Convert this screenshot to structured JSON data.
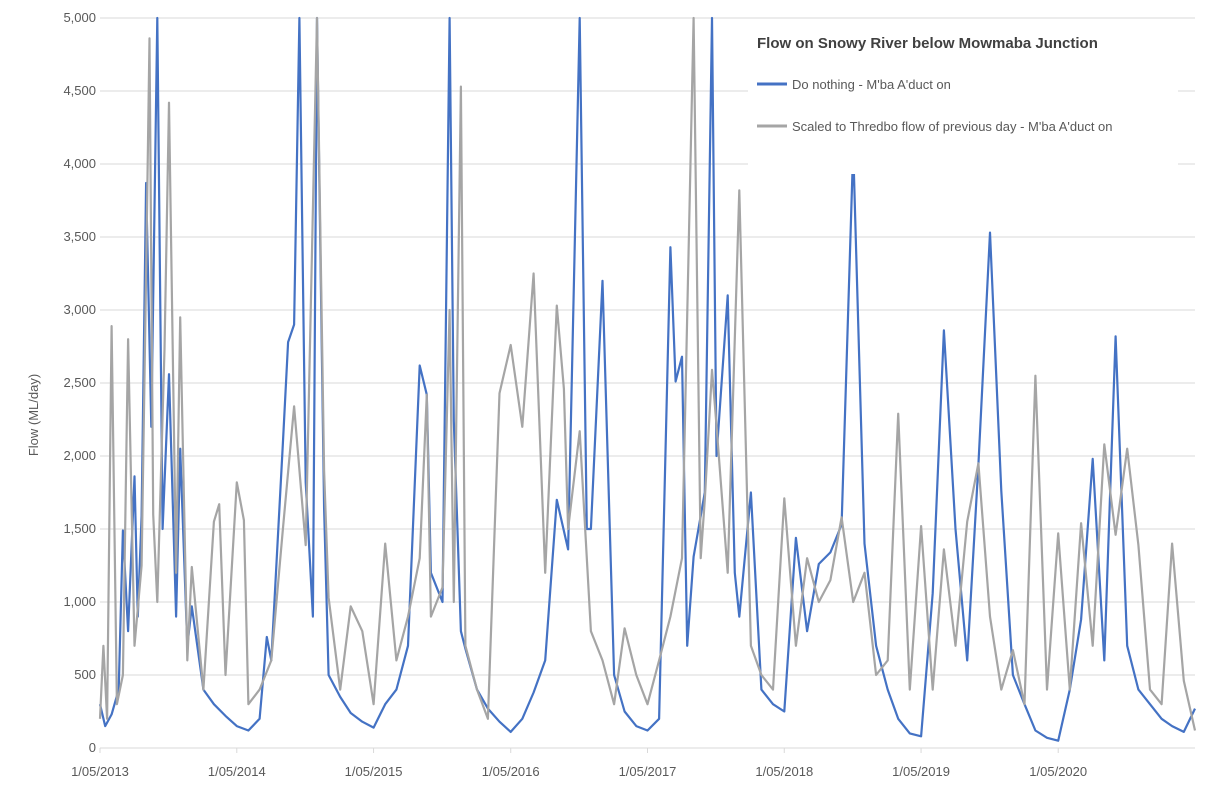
{
  "chart_data": {
    "type": "line",
    "title": "Flow on Snowy River below Mowmaba Junction",
    "ylabel": "Flow (ML/day)",
    "xlabel": "",
    "ylim": [
      0,
      5000
    ],
    "yticks": [
      0,
      500,
      1000,
      1500,
      2000,
      2500,
      3000,
      3500,
      4000,
      4500,
      5000
    ],
    "ytick_labels": [
      "0",
      "500",
      "1,000",
      "1,500",
      "2,000",
      "2,500",
      "3,000",
      "3,500",
      "4,000",
      "4,500",
      "5,000"
    ],
    "xlim": [
      "2013-05-01",
      "2021-05-01"
    ],
    "xticks": [
      "2013-05-01",
      "2014-05-01",
      "2015-05-01",
      "2016-05-01",
      "2017-05-01",
      "2018-05-01",
      "2019-05-01",
      "2020-05-01"
    ],
    "xtick_labels": [
      "1/05/2013",
      "1/05/2014",
      "1/05/2015",
      "1/05/2016",
      "1/05/2017",
      "1/05/2018",
      "1/05/2019",
      "1/05/2020"
    ],
    "grid": "horizontal",
    "legend_position": "top-right",
    "series": [
      {
        "name": "Do nothing - M'ba A'duct on",
        "color": "#4472c4",
        "points": [
          [
            "2013-05-01",
            300
          ],
          [
            "2013-05-15",
            150
          ],
          [
            "2013-06-01",
            230
          ],
          [
            "2013-06-20",
            400
          ],
          [
            "2013-07-01",
            1490
          ],
          [
            "2013-07-15",
            800
          ],
          [
            "2013-08-01",
            1860
          ],
          [
            "2013-08-10",
            900
          ],
          [
            "2013-08-20",
            1590
          ],
          [
            "2013-09-01",
            3870
          ],
          [
            "2013-09-15",
            2200
          ],
          [
            "2013-10-01",
            5000
          ],
          [
            "2013-10-15",
            1500
          ],
          [
            "2013-11-01",
            2560
          ],
          [
            "2013-11-20",
            900
          ],
          [
            "2013-12-01",
            2050
          ],
          [
            "2013-12-20",
            700
          ],
          [
            "2014-01-01",
            970
          ],
          [
            "2014-02-01",
            400
          ],
          [
            "2014-03-01",
            300
          ],
          [
            "2014-04-01",
            220
          ],
          [
            "2014-05-01",
            150
          ],
          [
            "2014-06-01",
            120
          ],
          [
            "2014-07-01",
            200
          ],
          [
            "2014-07-20",
            760
          ],
          [
            "2014-08-01",
            600
          ],
          [
            "2014-09-01",
            2090
          ],
          [
            "2014-09-15",
            2780
          ],
          [
            "2014-10-01",
            2900
          ],
          [
            "2014-10-15",
            5000
          ],
          [
            "2014-11-01",
            1820
          ],
          [
            "2014-11-20",
            900
          ],
          [
            "2014-12-01",
            5000
          ],
          [
            "2014-12-20",
            1640
          ],
          [
            "2015-01-01",
            500
          ],
          [
            "2015-02-01",
            350
          ],
          [
            "2015-03-01",
            240
          ],
          [
            "2015-04-01",
            180
          ],
          [
            "2015-05-01",
            140
          ],
          [
            "2015-06-01",
            300
          ],
          [
            "2015-07-01",
            400
          ],
          [
            "2015-08-01",
            700
          ],
          [
            "2015-09-01",
            2620
          ],
          [
            "2015-09-20",
            2420
          ],
          [
            "2015-10-01",
            1200
          ],
          [
            "2015-11-01",
            1000
          ],
          [
            "2015-11-20",
            5000
          ],
          [
            "2015-12-01",
            2240
          ],
          [
            "2015-12-20",
            800
          ],
          [
            "2016-01-01",
            680
          ],
          [
            "2016-02-01",
            400
          ],
          [
            "2016-03-01",
            270
          ],
          [
            "2016-04-01",
            180
          ],
          [
            "2016-05-01",
            110
          ],
          [
            "2016-06-01",
            200
          ],
          [
            "2016-07-01",
            380
          ],
          [
            "2016-08-01",
            600
          ],
          [
            "2016-09-01",
            1700
          ],
          [
            "2016-10-01",
            1360
          ],
          [
            "2016-11-01",
            5000
          ],
          [
            "2016-11-20",
            1500
          ],
          [
            "2016-12-01",
            1500
          ],
          [
            "2017-01-01",
            3200
          ],
          [
            "2017-02-01",
            500
          ],
          [
            "2017-03-01",
            250
          ],
          [
            "2017-04-01",
            150
          ],
          [
            "2017-05-01",
            120
          ],
          [
            "2017-06-01",
            200
          ],
          [
            "2017-07-01",
            3430
          ],
          [
            "2017-07-15",
            2510
          ],
          [
            "2017-08-01",
            2680
          ],
          [
            "2017-08-15",
            700
          ],
          [
            "2017-09-01",
            1310
          ],
          [
            "2017-10-01",
            1750
          ],
          [
            "2017-10-20",
            5000
          ],
          [
            "2017-11-01",
            2000
          ],
          [
            "2017-12-01",
            3100
          ],
          [
            "2017-12-20",
            1200
          ],
          [
            "2018-01-01",
            900
          ],
          [
            "2018-02-01",
            1750
          ],
          [
            "2018-03-01",
            400
          ],
          [
            "2018-04-01",
            300
          ],
          [
            "2018-05-01",
            250
          ],
          [
            "2018-06-01",
            1440
          ],
          [
            "2018-07-01",
            800
          ],
          [
            "2018-08-01",
            1260
          ],
          [
            "2018-09-01",
            1340
          ],
          [
            "2018-10-01",
            1530
          ],
          [
            "2018-11-01",
            4110
          ],
          [
            "2018-12-01",
            1400
          ],
          [
            "2019-01-01",
            700
          ],
          [
            "2019-02-01",
            400
          ],
          [
            "2019-03-01",
            200
          ],
          [
            "2019-04-01",
            100
          ],
          [
            "2019-05-01",
            80
          ],
          [
            "2019-06-01",
            1060
          ],
          [
            "2019-07-01",
            2860
          ],
          [
            "2019-08-01",
            1500
          ],
          [
            "2019-09-01",
            600
          ],
          [
            "2019-10-01",
            1940
          ],
          [
            "2019-11-01",
            3530
          ],
          [
            "2019-12-01",
            1760
          ],
          [
            "2020-01-01",
            500
          ],
          [
            "2020-02-01",
            300
          ],
          [
            "2020-03-01",
            120
          ],
          [
            "2020-04-01",
            70
          ],
          [
            "2020-05-01",
            50
          ],
          [
            "2020-06-01",
            400
          ],
          [
            "2020-07-01",
            880
          ],
          [
            "2020-08-01",
            1980
          ],
          [
            "2020-09-01",
            600
          ],
          [
            "2020-10-01",
            2820
          ],
          [
            "2020-11-01",
            700
          ],
          [
            "2020-12-01",
            400
          ],
          [
            "2021-01-01",
            300
          ],
          [
            "2021-02-01",
            200
          ],
          [
            "2021-03-01",
            150
          ],
          [
            "2021-04-01",
            110
          ],
          [
            "2021-05-01",
            270
          ]
        ]
      },
      {
        "name": "Scaled to Thredbo flow of previous day - M'ba A'duct on",
        "color": "#a5a5a5",
        "points": [
          [
            "2013-05-01",
            200
          ],
          [
            "2013-05-10",
            700
          ],
          [
            "2013-05-20",
            200
          ],
          [
            "2013-06-01",
            2890
          ],
          [
            "2013-06-15",
            300
          ],
          [
            "2013-07-01",
            500
          ],
          [
            "2013-07-15",
            2800
          ],
          [
            "2013-08-01",
            700
          ],
          [
            "2013-08-20",
            1250
          ],
          [
            "2013-09-01",
            3250
          ],
          [
            "2013-09-10",
            4860
          ],
          [
            "2013-09-20",
            1600
          ],
          [
            "2013-10-01",
            1000
          ],
          [
            "2013-10-20",
            2730
          ],
          [
            "2013-11-01",
            4420
          ],
          [
            "2013-11-20",
            1200
          ],
          [
            "2013-12-01",
            2950
          ],
          [
            "2013-12-20",
            600
          ],
          [
            "2014-01-01",
            1240
          ],
          [
            "2014-02-01",
            400
          ],
          [
            "2014-03-01",
            1550
          ],
          [
            "2014-03-15",
            1670
          ],
          [
            "2014-04-01",
            500
          ],
          [
            "2014-05-01",
            1820
          ],
          [
            "2014-05-20",
            1560
          ],
          [
            "2014-06-01",
            300
          ],
          [
            "2014-07-01",
            400
          ],
          [
            "2014-08-01",
            600
          ],
          [
            "2014-09-01",
            1500
          ],
          [
            "2014-10-01",
            2340
          ],
          [
            "2014-11-01",
            1390
          ],
          [
            "2014-12-01",
            5000
          ],
          [
            "2014-12-20",
            1900
          ],
          [
            "2015-01-01",
            1030
          ],
          [
            "2015-02-01",
            400
          ],
          [
            "2015-03-01",
            970
          ],
          [
            "2015-04-01",
            800
          ],
          [
            "2015-05-01",
            300
          ],
          [
            "2015-06-01",
            1400
          ],
          [
            "2015-07-01",
            600
          ],
          [
            "2015-08-01",
            900
          ],
          [
            "2015-09-01",
            1300
          ],
          [
            "2015-09-20",
            2420
          ],
          [
            "2015-10-01",
            900
          ],
          [
            "2015-11-01",
            1100
          ],
          [
            "2015-11-20",
            3000
          ],
          [
            "2015-12-01",
            1000
          ],
          [
            "2015-12-20",
            4530
          ],
          [
            "2016-01-01",
            700
          ],
          [
            "2016-02-01",
            400
          ],
          [
            "2016-03-01",
            200
          ],
          [
            "2016-04-01",
            2430
          ],
          [
            "2016-05-01",
            2760
          ],
          [
            "2016-06-01",
            2200
          ],
          [
            "2016-07-01",
            3250
          ],
          [
            "2016-08-01",
            1200
          ],
          [
            "2016-09-01",
            3030
          ],
          [
            "2016-09-20",
            2460
          ],
          [
            "2016-10-01",
            1500
          ],
          [
            "2016-11-01",
            2170
          ],
          [
            "2016-12-01",
            800
          ],
          [
            "2017-01-01",
            600
          ],
          [
            "2017-02-01",
            300
          ],
          [
            "2017-03-01",
            820
          ],
          [
            "2017-04-01",
            500
          ],
          [
            "2017-05-01",
            300
          ],
          [
            "2017-06-01",
            600
          ],
          [
            "2017-07-01",
            900
          ],
          [
            "2017-08-01",
            1300
          ],
          [
            "2017-09-01",
            5000
          ],
          [
            "2017-09-20",
            1300
          ],
          [
            "2017-10-01",
            1700
          ],
          [
            "2017-10-20",
            2590
          ],
          [
            "2017-11-01",
            2210
          ],
          [
            "2017-12-01",
            1200
          ],
          [
            "2018-01-01",
            3820
          ],
          [
            "2018-02-01",
            700
          ],
          [
            "2018-03-01",
            500
          ],
          [
            "2018-04-01",
            400
          ],
          [
            "2018-05-01",
            1710
          ],
          [
            "2018-06-01",
            700
          ],
          [
            "2018-07-01",
            1300
          ],
          [
            "2018-08-01",
            1000
          ],
          [
            "2018-09-01",
            1150
          ],
          [
            "2018-10-01",
            1580
          ],
          [
            "2018-11-01",
            1000
          ],
          [
            "2018-12-01",
            1200
          ],
          [
            "2019-01-01",
            500
          ],
          [
            "2019-02-01",
            600
          ],
          [
            "2019-03-01",
            2290
          ],
          [
            "2019-04-01",
            400
          ],
          [
            "2019-05-01",
            1520
          ],
          [
            "2019-06-01",
            400
          ],
          [
            "2019-07-01",
            1360
          ],
          [
            "2019-08-01",
            700
          ],
          [
            "2019-09-01",
            1550
          ],
          [
            "2019-10-01",
            1950
          ],
          [
            "2019-11-01",
            900
          ],
          [
            "2019-12-01",
            400
          ],
          [
            "2020-01-01",
            670
          ],
          [
            "2020-02-01",
            300
          ],
          [
            "2020-03-01",
            2550
          ],
          [
            "2020-04-01",
            400
          ],
          [
            "2020-05-01",
            1470
          ],
          [
            "2020-06-01",
            400
          ],
          [
            "2020-07-01",
            1540
          ],
          [
            "2020-08-01",
            700
          ],
          [
            "2020-09-01",
            2080
          ],
          [
            "2020-10-01",
            1460
          ],
          [
            "2020-11-01",
            2050
          ],
          [
            "2020-12-01",
            1390
          ],
          [
            "2021-01-01",
            400
          ],
          [
            "2021-02-01",
            300
          ],
          [
            "2021-03-01",
            1400
          ],
          [
            "2021-04-01",
            460
          ],
          [
            "2021-05-01",
            120
          ]
        ]
      }
    ]
  }
}
